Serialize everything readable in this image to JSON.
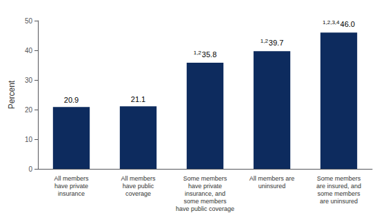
{
  "chart_data": {
    "type": "bar",
    "categories": [
      "All members\nhave private\ninsurance",
      "All members\nhave public\ncoverage",
      "Some members\nhave private\ninsurance, and\nsome members\nhave public coverage",
      "All members are\nuninsured",
      "Some members\nare insured, and\nsome members\nare uninsured"
    ],
    "values": [
      20.9,
      21.1,
      35.8,
      39.7,
      46.0
    ],
    "value_labels": [
      "20.9",
      "21.1",
      "35.8",
      "39.7",
      "46.0"
    ],
    "data_labels": true,
    "annotations": [
      {
        "category": "Some members\nhave private\ninsurance, and\nsome members\nhave public coverage",
        "text": "1,2"
      },
      {
        "category": "All members are\nuninsured",
        "text": "1,2"
      },
      {
        "category": "Some members\nare insured, and\nsome members\nare uninsured",
        "text": "1,2,3,4"
      }
    ],
    "color": "#0d2b5e",
    "ylabel": "Percent",
    "ylim": [
      0,
      50
    ],
    "yticks": [
      0,
      10,
      20,
      30,
      40,
      50
    ],
    "grid": false
  }
}
